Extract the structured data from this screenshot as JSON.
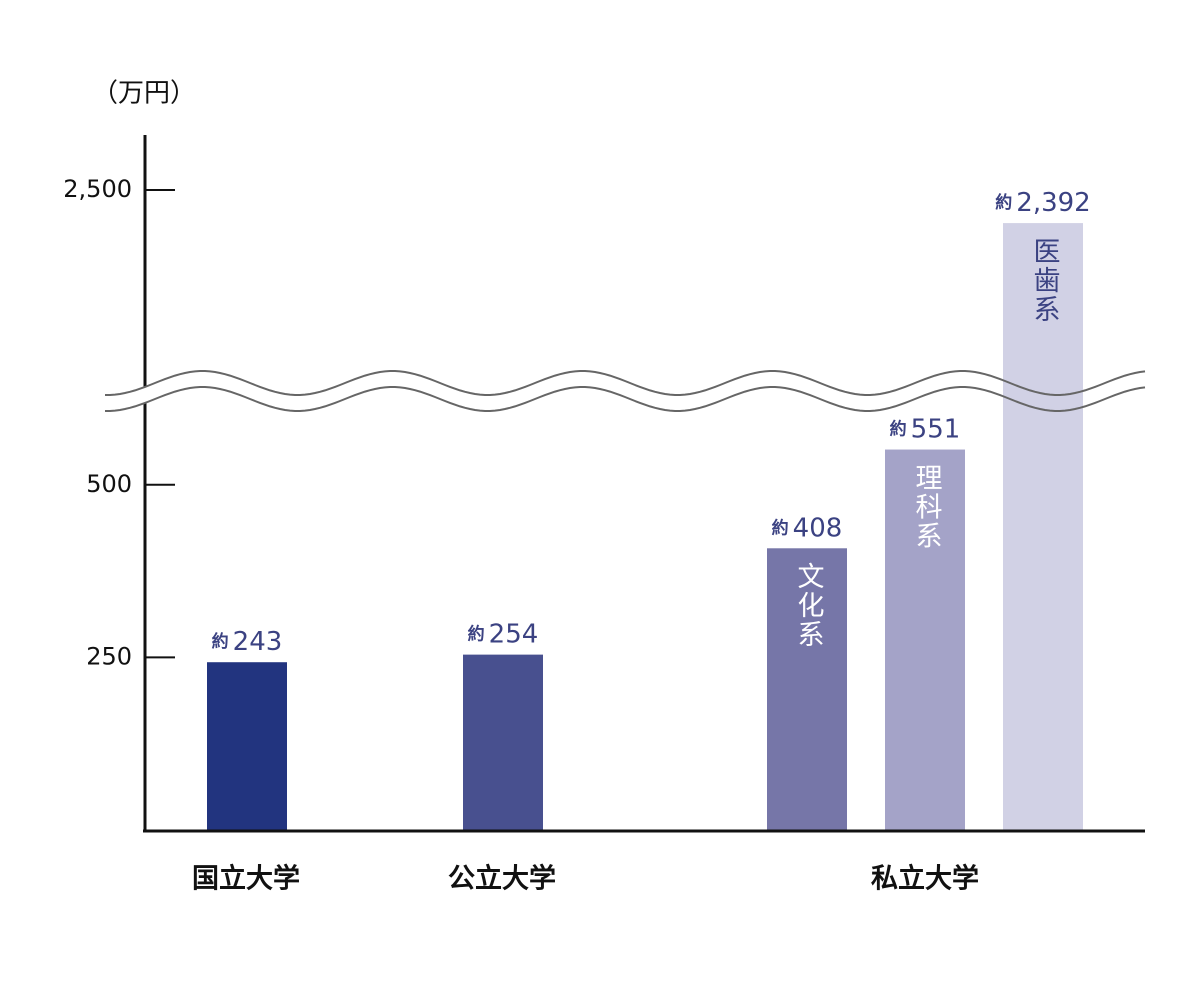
{
  "chart_data": {
    "type": "bar",
    "y_unit": "（万円）",
    "ylim": [
      0,
      2680
    ],
    "y_break": [
      630,
      1830
    ],
    "yticks": [
      250,
      500,
      {
        "value": 2500,
        "label": "2,500"
      }
    ],
    "groups": [
      {
        "name": "国立大学",
        "bars": [
          {
            "value": 243,
            "value_label": "約243",
            "color": "#22347f"
          }
        ]
      },
      {
        "name": "公立大学",
        "bars": [
          {
            "value": 254,
            "value_label": "約254",
            "color": "#48508f"
          }
        ]
      },
      {
        "name": "私立大学",
        "bars": [
          {
            "name": "文化系",
            "value": 408,
            "value_label": "約408",
            "color": "#7676a8"
          },
          {
            "name": "理科系",
            "value": 551,
            "value_label": "約551",
            "color": "#a4a3c8"
          },
          {
            "name": "医歯系",
            "value": 2392,
            "value_label": "約2,392",
            "color": "#d1d1e5"
          }
        ]
      }
    ]
  }
}
